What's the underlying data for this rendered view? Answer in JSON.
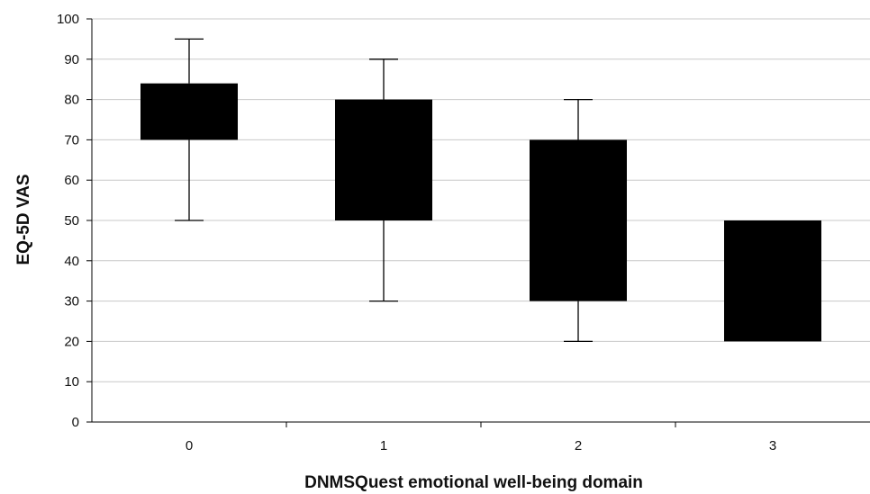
{
  "chart_data": {
    "type": "box",
    "title": "",
    "xlabel": "DNMSQuest emotional  well-being domain",
    "ylabel": "EQ-5D VAS",
    "ylim": [
      0,
      100
    ],
    "y_ticks": [
      0,
      10,
      20,
      30,
      40,
      50,
      60,
      70,
      80,
      90,
      100
    ],
    "grid": "horizontal",
    "legend": "none",
    "categories": [
      "0",
      "1",
      "2",
      "3"
    ],
    "boxes": [
      {
        "category": "0",
        "whisker_low": 50,
        "q1": 70,
        "q3": 84,
        "whisker_high": 95
      },
      {
        "category": "1",
        "whisker_low": 30,
        "q1": 50,
        "q3": 80,
        "whisker_high": 90
      },
      {
        "category": "2",
        "whisker_low": 20,
        "q1": 30,
        "q3": 70,
        "whisker_high": 80
      },
      {
        "category": "3",
        "whisker_low": 20,
        "q1": 20,
        "q3": 50,
        "whisker_high": 50
      }
    ],
    "colors": {
      "box": "#000000",
      "grid": "#c8c8c8",
      "axis": "#000000"
    }
  }
}
